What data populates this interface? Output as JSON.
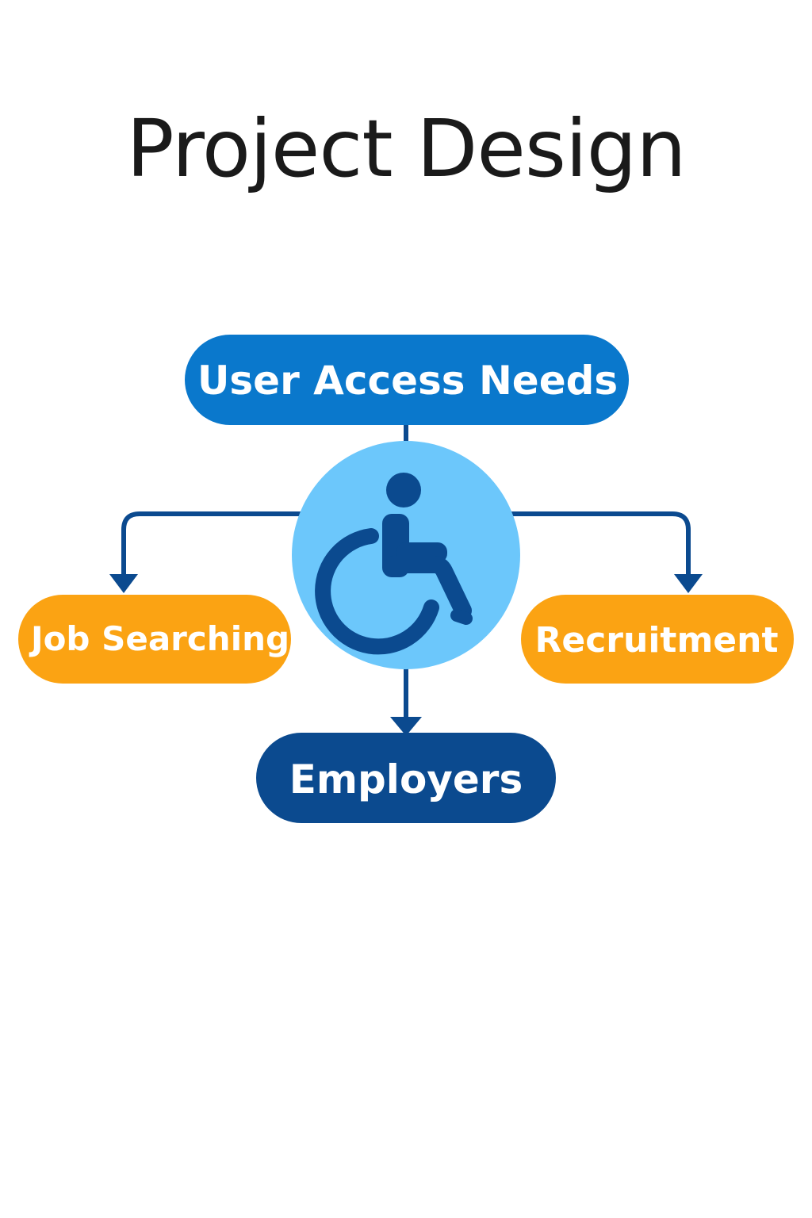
{
  "title": "Project Design",
  "colors": {
    "primary_blue": "#0a78cc",
    "dark_blue": "#0b4a8f",
    "light_blue": "#6cc7fb",
    "orange": "#fba313",
    "connector": "#0b4a8f",
    "text": "#1a1a1a"
  },
  "nodes": {
    "top": {
      "label": "User Access Needs"
    },
    "center": {
      "icon": "wheelchair-accessibility-icon"
    },
    "left": {
      "label": "Job Searching"
    },
    "right": {
      "label": "Recruitment"
    },
    "bottom": {
      "label": "Employers"
    }
  }
}
